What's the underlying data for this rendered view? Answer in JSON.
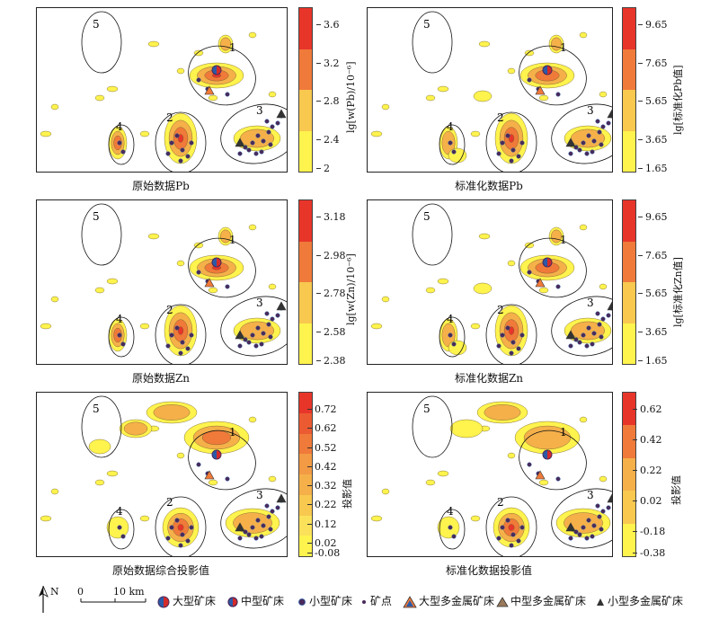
{
  "panels": [
    {
      "id": "pb-raw",
      "caption": "原始数据Pb",
      "colorbar_label": "lg[w(Pb)/10⁻⁶]",
      "ticks": [
        "3.6",
        "3.2",
        "2.8",
        "2.4",
        "2"
      ]
    },
    {
      "id": "pb-std",
      "caption": "标准化数据Pb",
      "colorbar_label": "lg[标准化Pb值]",
      "ticks": [
        "9.65",
        "7.65",
        "5.65",
        "3.65",
        "1.65"
      ]
    },
    {
      "id": "zn-raw",
      "caption": "原始数据Zn",
      "colorbar_label": "lg[w(Zn)/10⁻⁶]",
      "ticks": [
        "3.18",
        "2.98",
        "2.78",
        "2.58",
        "2.38"
      ]
    },
    {
      "id": "zn-std",
      "caption": "标准化数据Zn",
      "colorbar_label": "lg[标准化Zn值]",
      "ticks": [
        "9.65",
        "7.65",
        "5.65",
        "3.65",
        "1.65"
      ]
    },
    {
      "id": "proj-raw",
      "caption": "原始数据综合投影值",
      "colorbar_label": "投影值",
      "ticks": [
        "0.72",
        "0.62",
        "0.52",
        "0.42",
        "0.32",
        "0.22",
        "0.12",
        "0.02",
        "-0.08"
      ]
    },
    {
      "id": "proj-std",
      "caption": "标准化数据投影值",
      "colorbar_label": "投影值",
      "ticks": [
        "0.62",
        "0.42",
        "0.22",
        "0.02",
        "-0.18",
        "-0.38"
      ]
    }
  ],
  "zones": [
    "1",
    "2",
    "3",
    "4",
    "5"
  ],
  "colors": {
    "high": "#e8352a",
    "mid_high": "#f07a3a",
    "mid": "#f5b04a",
    "low": "#fbe15a",
    "lowest": "#fff34d",
    "deposit_blue": "#2b5aa8",
    "deposit_red": "#d42a2a",
    "purple": "#4a2a5a"
  },
  "north": "N",
  "scale": {
    "zero": "0",
    "label": "10 km"
  },
  "legend": [
    {
      "icon": "large-deposit-icon",
      "label": "大型矿床"
    },
    {
      "icon": "medium-deposit-icon",
      "label": "中型矿床"
    },
    {
      "icon": "small-deposit-icon",
      "label": "小型矿床"
    },
    {
      "icon": "ore-point-icon",
      "label": "矿点"
    },
    {
      "icon": "large-polymetallic-icon",
      "label": "大型多金属矿床"
    },
    {
      "icon": "medium-polymetallic-icon",
      "label": "中型多金属矿床"
    },
    {
      "icon": "small-polymetallic-icon",
      "label": "小型多金属矿床"
    }
  ]
}
